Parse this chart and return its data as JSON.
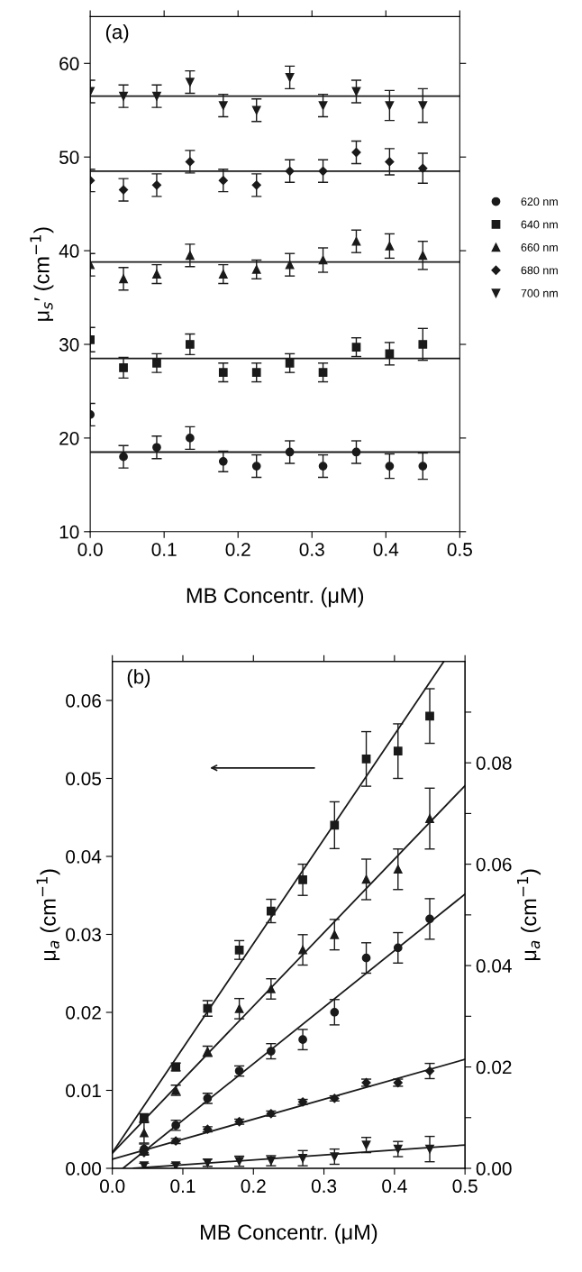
{
  "chart_data": [
    {
      "type": "scatter",
      "xlabel": "MB Concentr. (μM)",
      "ylabel": "μ$_{s}$′ (cm$^{−1}$)",
      "annotations": [
        "(a)"
      ],
      "xlim": [
        0,
        0.5
      ],
      "xticks": [
        {
          "value": 0,
          "label": "0.0"
        },
        {
          "value": 0.1,
          "label": "0.1"
        },
        {
          "value": 0.2,
          "label": "0.2"
        },
        {
          "value": 0.3,
          "label": "0.3"
        },
        {
          "value": 0.4,
          "label": "0.4"
        },
        {
          "value": 0.5,
          "label": "0.5"
        }
      ],
      "ylim": [
        10,
        65
      ],
      "yticks": [
        10,
        20,
        30,
        40,
        50,
        60
      ],
      "grid": false,
      "legend": "right",
      "series": [
        {
          "name": "620 nm",
          "color": "#1a1a1a",
          "marker": "circle",
          "x": [
            0,
            0.045,
            0.09,
            0.135,
            0.18,
            0.225,
            0.27,
            0.315,
            0.36,
            0.405,
            0.45
          ],
          "values": [
            22.5,
            18,
            19,
            20,
            17.5,
            17,
            18.5,
            17,
            18.5,
            17,
            17
          ],
          "errors": [
            1.2,
            1.2,
            1.2,
            1.2,
            1.1,
            1.2,
            1.2,
            1.2,
            1.2,
            1.3,
            1.4
          ]
        },
        {
          "name": "640 nm",
          "color": "#1a1a1a",
          "marker": "square",
          "x": [
            0,
            0.045,
            0.09,
            0.135,
            0.18,
            0.225,
            0.27,
            0.315,
            0.36,
            0.405,
            0.45
          ],
          "values": [
            30.5,
            27.5,
            28,
            30,
            27,
            27,
            28,
            27,
            29.7,
            29,
            30
          ],
          "errors": [
            1.3,
            1.1,
            1,
            1.1,
            1,
            1,
            1,
            1,
            1,
            1.2,
            1.7
          ]
        },
        {
          "name": "660 nm",
          "color": "#1a1a1a",
          "marker": "triangle",
          "x": [
            0,
            0.045,
            0.09,
            0.135,
            0.18,
            0.225,
            0.27,
            0.315,
            0.36,
            0.405,
            0.45
          ],
          "values": [
            38.5,
            37,
            37.5,
            39.5,
            37.5,
            38,
            38.5,
            39,
            41,
            40.5,
            39.5
          ],
          "errors": [
            1.2,
            1.2,
            1,
            1.2,
            1,
            1,
            1.2,
            1.3,
            1.2,
            1.3,
            1.5
          ]
        },
        {
          "name": "680 nm",
          "color": "#1a1a1a",
          "marker": "diamond",
          "x": [
            0,
            0.045,
            0.09,
            0.135,
            0.18,
            0.225,
            0.27,
            0.315,
            0.36,
            0.405,
            0.45
          ],
          "values": [
            47.5,
            46.5,
            47,
            49.5,
            47.5,
            47,
            48.5,
            48.5,
            50.5,
            49.5,
            48.8
          ],
          "errors": [
            1.2,
            1.2,
            1.2,
            1.2,
            1.2,
            1.2,
            1.2,
            1.2,
            1.2,
            1.4,
            1.6
          ]
        },
        {
          "name": "700 nm",
          "color": "#1a1a1a",
          "marker": "triangle-down",
          "x": [
            0,
            0.045,
            0.09,
            0.135,
            0.18,
            0.225,
            0.27,
            0.315,
            0.36,
            0.405,
            0.45
          ],
          "values": [
            57,
            56.5,
            56.5,
            58,
            55.5,
            55,
            58.5,
            55.5,
            57,
            55.5,
            55.5
          ],
          "errors": [
            1.2,
            1.2,
            1.2,
            1.2,
            1.2,
            1.2,
            1.2,
            1.2,
            1.2,
            1.6,
            1.8
          ]
        },
        {
          "type": "line",
          "color": "#1a1a1a",
          "x": [
            0,
            0.5
          ],
          "values": [
            18.5,
            18.5
          ]
        },
        {
          "type": "line",
          "color": "#1a1a1a",
          "x": [
            0,
            0.5
          ],
          "values": [
            28.5,
            28.5
          ]
        },
        {
          "type": "line",
          "color": "#1a1a1a",
          "x": [
            0,
            0.5
          ],
          "values": [
            38.8,
            38.8
          ]
        },
        {
          "type": "line",
          "color": "#1a1a1a",
          "x": [
            0,
            0.5
          ],
          "values": [
            48.5,
            48.5
          ]
        },
        {
          "type": "line",
          "color": "#1a1a1a",
          "x": [
            0,
            0.5
          ],
          "values": [
            56.5,
            56.5
          ]
        }
      ]
    },
    {
      "type": "scatter",
      "xlabel": "MB Concentr. (μM)",
      "ylabel": "μ$_{a}$ (cm$^{−1}$)",
      "y2label": "μ$_{a}$ (cm$^{−1}$)",
      "annotations": [
        "(b)"
      ],
      "xlim": [
        0,
        0.5
      ],
      "xticks": [
        {
          "value": 0,
          "label": "0.0"
        },
        {
          "value": 0.1,
          "label": "0.1"
        },
        {
          "value": 0.2,
          "label": "0.2"
        },
        {
          "value": 0.3,
          "label": "0.3"
        },
        {
          "value": 0.4,
          "label": "0.4"
        },
        {
          "value": 0.5,
          "label": "0.5"
        }
      ],
      "ylim": [
        0,
        0.065
      ],
      "yticks": [
        {
          "value": 0,
          "label": "0.00"
        },
        {
          "value": 0.01,
          "label": "0.01"
        },
        {
          "value": 0.02,
          "label": "0.02"
        },
        {
          "value": 0.03,
          "label": "0.03"
        },
        {
          "value": 0.04,
          "label": "0.04"
        },
        {
          "value": 0.05,
          "label": "0.05"
        },
        {
          "value": 0.06,
          "label": "0.06"
        }
      ],
      "y2lim": [
        0,
        0.1
      ],
      "y2ticks": [
        {
          "value": 0,
          "label": "0.00"
        },
        {
          "value": 0.01,
          "label": null
        },
        {
          "value": 0.02,
          "label": "0.02"
        },
        {
          "value": 0.03,
          "label": null
        },
        {
          "value": 0.04,
          "label": "0.04"
        },
        {
          "value": 0.05,
          "label": null
        },
        {
          "value": 0.06,
          "label": "0.06"
        },
        {
          "value": 0.07,
          "label": null
        },
        {
          "value": 0.08,
          "label": "0.08"
        },
        {
          "value": 0.09,
          "label": null
        }
      ],
      "grid": false,
      "series": [
        {
          "color": "#1a1a1a",
          "marker": "square",
          "axis": "y",
          "x": [
            0.045,
            0.09,
            0.135,
            0.18,
            0.225,
            0.27,
            0.315,
            0.36,
            0.405,
            0.45
          ],
          "values": [
            0.0065,
            0.013,
            0.0205,
            0.028,
            0.033,
            0.037,
            0.044,
            0.0525,
            0.0535,
            0.058
          ],
          "errors": [
            0.0005,
            0.0005,
            0.001,
            0.0012,
            0.0015,
            0.002,
            0.003,
            0.0035,
            0.0035,
            0.0035
          ]
        },
        {
          "type": "line",
          "color": "#1a1a1a",
          "axis": "y",
          "x": [
            0,
            0.47
          ],
          "values": [
            0.002,
            0.065
          ]
        },
        {
          "color": "#1a1a1a",
          "marker": "triangle",
          "axis": "y2",
          "x": [
            0.045,
            0.09,
            0.135,
            0.18,
            0.225,
            0.27,
            0.315,
            0.36,
            0.405,
            0.45
          ],
          "values": [
            0.007,
            0.0154,
            0.0231,
            0.0315,
            0.0354,
            0.0431,
            0.0461,
            0.057,
            0.059,
            0.069
          ],
          "errors": [
            0.002,
            0.001,
            0.001,
            0.002,
            0.002,
            0.003,
            0.003,
            0.004,
            0.004,
            0.006
          ]
        },
        {
          "type": "line",
          "color": "#1a1a1a",
          "axis": "y2",
          "x": [
            0,
            0.5
          ],
          "values": [
            0.003,
            0.0755
          ]
        },
        {
          "color": "#1a1a1a",
          "marker": "circle",
          "axis": "y2",
          "x": [
            0.045,
            0.09,
            0.135,
            0.18,
            0.225,
            0.27,
            0.315,
            0.36,
            0.405,
            0.45
          ],
          "values": [
            0.0038,
            0.0085,
            0.0138,
            0.0192,
            0.0231,
            0.0254,
            0.0308,
            0.0415,
            0.0435,
            0.0492
          ],
          "errors": [
            0.001,
            0.001,
            0.001,
            0.001,
            0.0015,
            0.002,
            0.0025,
            0.003,
            0.003,
            0.004
          ]
        },
        {
          "type": "line",
          "color": "#1a1a1a",
          "axis": "y2",
          "x": [
            0.015,
            0.5
          ],
          "values": [
            0,
            0.0541
          ]
        },
        {
          "color": "#1a1a1a",
          "marker": "diamond",
          "axis": "y2",
          "x": [
            0.045,
            0.09,
            0.135,
            0.18,
            0.225,
            0.27,
            0.315,
            0.36,
            0.405,
            0.45
          ],
          "values": [
            0.0031,
            0.0054,
            0.0077,
            0.0092,
            0.0108,
            0.0131,
            0.0138,
            0.0169,
            0.0169,
            0.0192
          ],
          "errors": [
            0.0005,
            0.0005,
            0.0005,
            0.0005,
            0.0005,
            0.0005,
            0.0005,
            0.0007,
            0.0007,
            0.0015
          ]
        },
        {
          "type": "line",
          "color": "#1a1a1a",
          "axis": "y2",
          "x": [
            0,
            0.5
          ],
          "values": [
            0.0018,
            0.0215
          ]
        },
        {
          "color": "#1a1a1a",
          "marker": "triangle-down",
          "axis": "y2",
          "x": [
            0.045,
            0.09,
            0.135,
            0.18,
            0.225,
            0.27,
            0.315,
            0.36,
            0.405,
            0.45
          ],
          "values": [
            0.0005,
            0.0005,
            0.0011,
            0.0014,
            0.0015,
            0.002,
            0.0023,
            0.0046,
            0.0038,
            0.0038
          ],
          "errors": [
            0.0005,
            0.0005,
            0.0007,
            0.001,
            0.001,
            0.0015,
            0.0015,
            0.0015,
            0.0015,
            0.0025
          ]
        },
        {
          "type": "line",
          "color": "#1a1a1a",
          "axis": "y2",
          "x": [
            0.03,
            0.5
          ],
          "values": [
            0,
            0.0046
          ]
        }
      ]
    }
  ]
}
